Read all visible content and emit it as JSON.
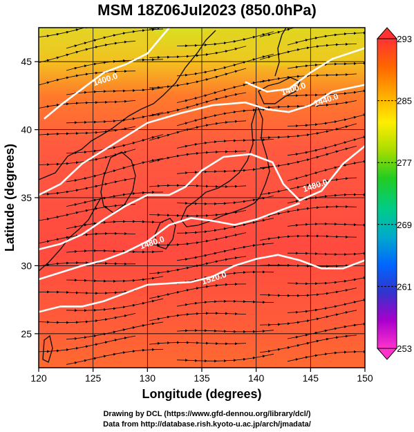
{
  "title": "MSM 18Z06Jul2023 (850.0hPa)",
  "x_axis": {
    "label": "Longitude (degrees)",
    "range": [
      120,
      150
    ],
    "ticks": [
      120,
      125,
      130,
      135,
      140,
      145,
      150
    ]
  },
  "y_axis": {
    "label": "Latitude (degrees)",
    "range": [
      22.5,
      47.5
    ],
    "ticks": [
      25,
      30,
      35,
      40,
      45
    ]
  },
  "colorbar": {
    "range": [
      253,
      293
    ],
    "ticks": [
      253,
      261,
      269,
      277,
      285,
      293
    ],
    "colors": [
      "#ff33cc",
      "#aa00cc",
      "#3333cc",
      "#0066ff",
      "#00aacc",
      "#00cc88",
      "#22cc22",
      "#aadd00",
      "#ffee00",
      "#ffaa00",
      "#ff6600",
      "#ff3333"
    ]
  },
  "contours": [
    {
      "label": "1400.0",
      "points": [
        [
          120.5,
          40.8
        ],
        [
          122,
          41.8
        ],
        [
          124,
          43
        ],
        [
          126,
          44.2
        ],
        [
          128,
          44.8
        ],
        [
          130,
          45.6
        ],
        [
          132,
          47.5
        ]
      ],
      "label_at": [
        126.2,
        43.5
      ]
    },
    {
      "label": "1400.0",
      "points": [
        [
          139,
          43.5
        ],
        [
          141,
          42.8
        ],
        [
          143,
          43
        ],
        [
          145,
          44.2
        ],
        [
          147,
          45.2
        ],
        [
          150,
          46
        ]
      ],
      "label_at": [
        143.5,
        42.8
      ]
    },
    {
      "label": "1440.0",
      "points": [
        [
          120,
          35.2
        ],
        [
          122,
          36
        ],
        [
          124,
          37.5
        ],
        [
          126,
          38.5
        ],
        [
          128,
          39.5
        ],
        [
          130,
          40.5
        ],
        [
          133,
          41.2
        ],
        [
          136,
          41.8
        ],
        [
          139,
          42
        ],
        [
          141,
          41.5
        ],
        [
          143,
          41.3
        ],
        [
          145,
          41.8
        ],
        [
          147,
          42.8
        ],
        [
          150,
          43.3
        ]
      ],
      "label_at": [
        146.5,
        42
      ]
    },
    {
      "label": "1480.0",
      "points": [
        [
          120,
          31.2
        ],
        [
          122,
          31.6
        ],
        [
          124,
          32.3
        ],
        [
          126,
          33.4
        ],
        [
          128,
          34.4
        ],
        [
          130,
          35.2
        ],
        [
          132,
          35.2
        ],
        [
          133.5,
          35.8
        ],
        [
          135,
          37
        ],
        [
          137,
          38
        ],
        [
          139.5,
          38.2
        ],
        [
          141.5,
          37.6
        ],
        [
          142.5,
          36
        ],
        [
          144,
          34.8
        ],
        [
          146,
          35.5
        ],
        [
          148,
          37.5
        ],
        [
          150,
          38.8
        ]
      ],
      "label_at": [
        145.5,
        35.7
      ]
    },
    {
      "label": "1480.0",
      "points": [
        [
          120,
          29
        ],
        [
          122,
          29.5
        ],
        [
          124,
          30
        ],
        [
          126,
          30.4
        ],
        [
          128,
          31
        ],
        [
          130,
          31.8
        ],
        [
          132,
          33
        ],
        [
          134,
          33.5
        ],
        [
          136,
          33.3
        ],
        [
          138,
          33
        ],
        [
          140,
          33.4
        ],
        [
          142,
          34
        ],
        [
          144,
          34.6
        ]
      ],
      "label_at": [
        130.5,
        31.5
      ]
    },
    {
      "label": "1520.0",
      "points": [
        [
          120,
          26.6
        ],
        [
          122,
          27
        ],
        [
          124,
          27
        ],
        [
          126,
          27.4
        ],
        [
          128,
          28
        ],
        [
          130,
          28.6
        ],
        [
          132,
          28.7
        ],
        [
          134,
          28.8
        ],
        [
          136,
          29.2
        ],
        [
          138,
          30
        ],
        [
          140,
          30.5
        ],
        [
          142,
          30.8
        ],
        [
          144,
          30.4
        ],
        [
          146,
          29.8
        ],
        [
          148,
          29.8
        ],
        [
          150,
          30.4
        ]
      ],
      "label_at": [
        136.2,
        28.9
      ]
    }
  ],
  "credits": [
    "Drawing by DCL (https://www.gfd-dennou.org/library/dcl/)",
    "Data from http://database.rish.kyoto-u.ac.jp/arch/jmadata/"
  ]
}
